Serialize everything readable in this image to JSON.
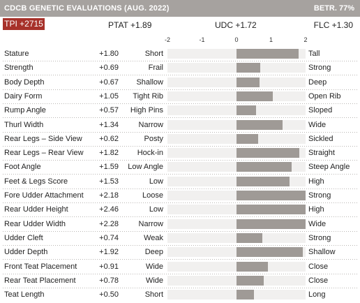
{
  "header": {
    "title": "CDCB GENETIC EVALUATIONS (AUG. 2022)",
    "reliability": "BETR. 77%"
  },
  "summary": {
    "tpi": "TPI +2715",
    "ptat": "PTAT +1.89",
    "udc": "UDC +1.72",
    "flc": "FLC +1.30"
  },
  "colors": {
    "header_bg": "#a6a29f",
    "tpi_bg": "#a7312a",
    "bar": "#9f9a96",
    "track": "#f1f0ef"
  },
  "chart_data": {
    "type": "bar",
    "orientation": "horizontal",
    "xlim": [
      -2,
      2
    ],
    "ticks": [
      "-2",
      "-1",
      "0",
      "1",
      "2"
    ],
    "rows": [
      {
        "trait": "Stature",
        "label": "+1.80",
        "value": 1.8,
        "low": "Short",
        "high": "Tall"
      },
      {
        "trait": "Strength",
        "label": "+0.69",
        "value": 0.69,
        "low": "Frail",
        "high": "Strong"
      },
      {
        "trait": "Body Depth",
        "label": "+0.67",
        "value": 0.67,
        "low": "Shallow",
        "high": "Deep"
      },
      {
        "trait": "Dairy Form",
        "label": "+1.05",
        "value": 1.05,
        "low": "Tight Rib",
        "high": "Open Rib"
      },
      {
        "trait": "Rump Angle",
        "label": "+0.57",
        "value": 0.57,
        "low": "High Pins",
        "high": "Sloped"
      },
      {
        "trait": "Thurl Width",
        "label": "+1.34",
        "value": 1.34,
        "low": "Narrow",
        "high": "Wide"
      },
      {
        "trait": "Rear Legs – Side View",
        "label": "+0.62",
        "value": 0.62,
        "low": "Posty",
        "high": "Sickled"
      },
      {
        "trait": "Rear Legs – Rear View",
        "label": "+1.82",
        "value": 1.82,
        "low": "Hock-in",
        "high": "Straight"
      },
      {
        "trait": "Foot Angle",
        "label": "+1.59",
        "value": 1.59,
        "low": "Low Angle",
        "high": "Steep Angle"
      },
      {
        "trait": "Feet & Legs Score",
        "label": "+1.53",
        "value": 1.53,
        "low": "Low",
        "high": "High"
      },
      {
        "trait": "Fore Udder Attachment",
        "label": "+2.18",
        "value": 2.18,
        "low": "Loose",
        "high": "Strong"
      },
      {
        "trait": "Rear Udder Height",
        "label": "+2.46",
        "value": 2.46,
        "low": "Low",
        "high": "High"
      },
      {
        "trait": "Rear Udder Width",
        "label": "+2.28",
        "value": 2.28,
        "low": "Narrow",
        "high": "Wide"
      },
      {
        "trait": "Udder Cleft",
        "label": "+0.74",
        "value": 0.74,
        "low": "Weak",
        "high": "Strong"
      },
      {
        "trait": "Udder Depth",
        "label": "+1.92",
        "value": 1.92,
        "low": "Deep",
        "high": "Shallow"
      },
      {
        "trait": "Front Teat Placement",
        "label": "+0.91",
        "value": 0.91,
        "low": "Wide",
        "high": "Close"
      },
      {
        "trait": "Rear Teat Placement",
        "label": "+0.78",
        "value": 0.78,
        "low": "Wide",
        "high": "Close"
      },
      {
        "trait": "Teat Length",
        "label": "+0.50",
        "value": 0.5,
        "low": "Short",
        "high": "Long"
      }
    ]
  }
}
